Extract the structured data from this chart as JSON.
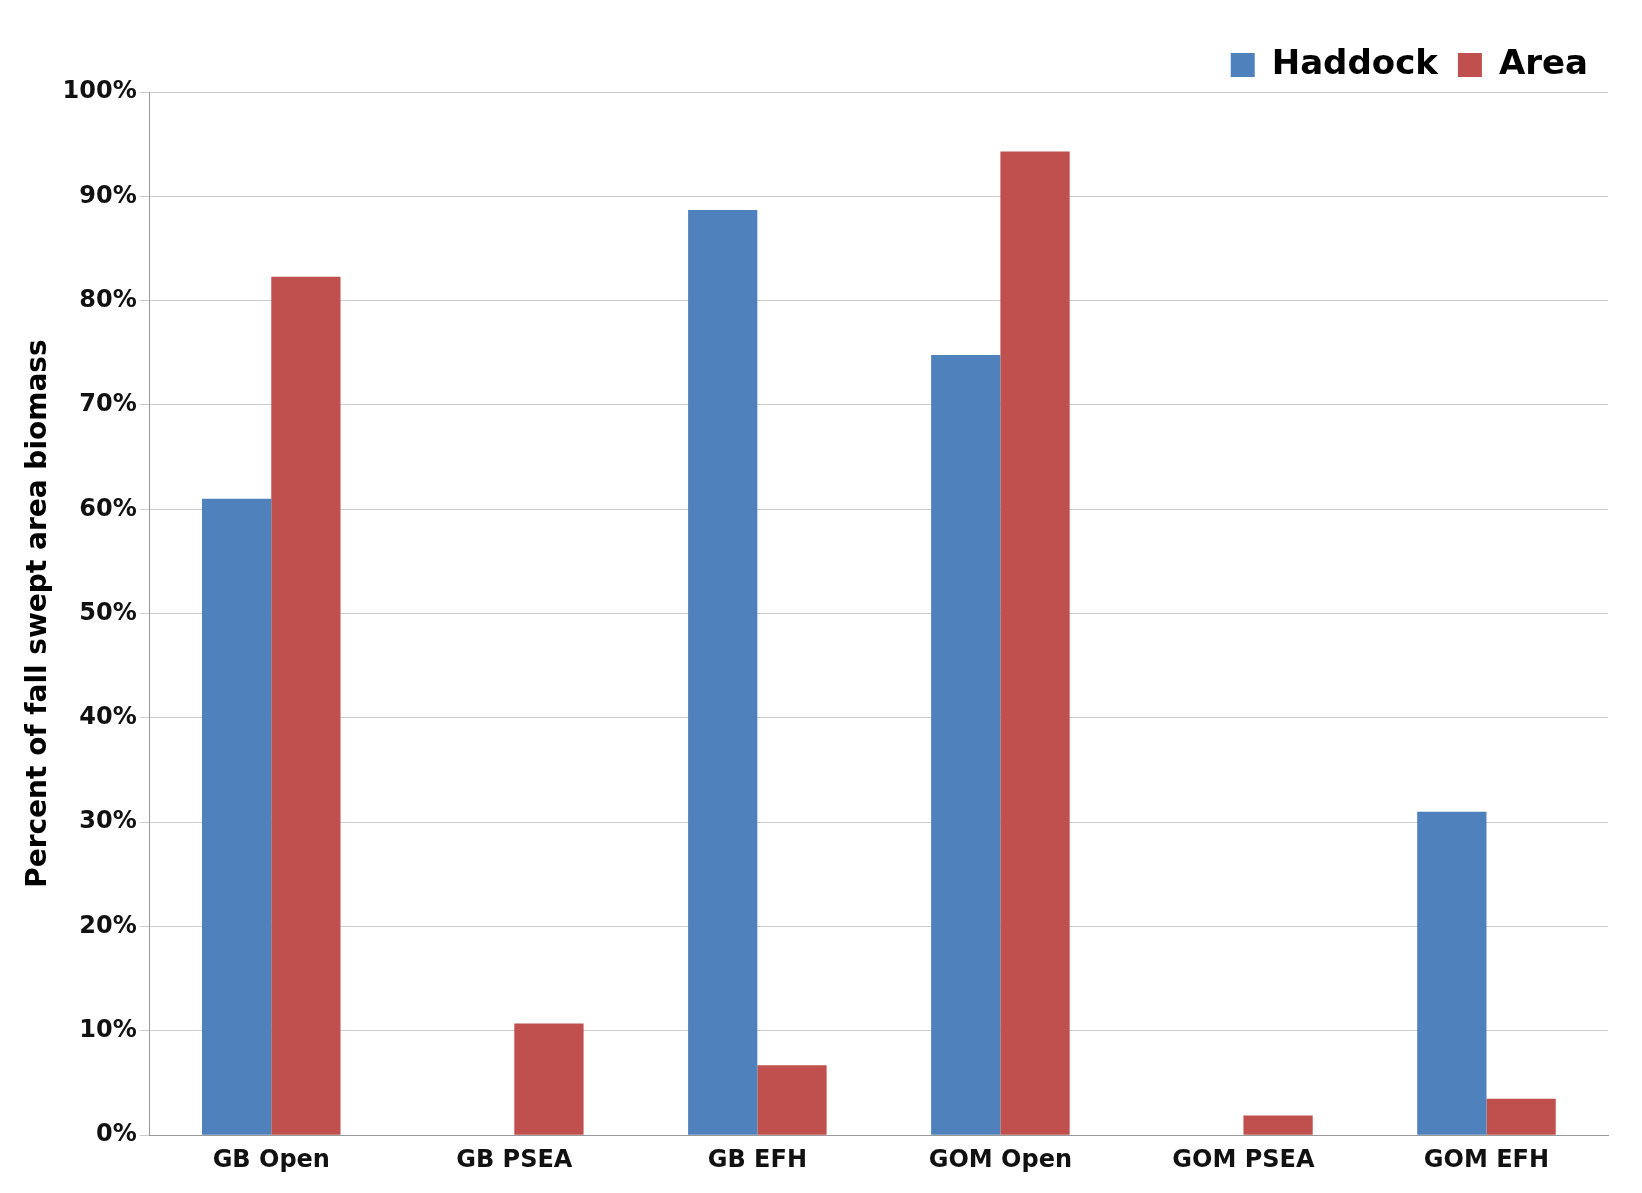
{
  "chart_data": {
    "type": "bar",
    "ylabel": "Percent of fall swept area biomass",
    "categories": [
      "GB Open",
      "GB PSEA",
      "GB EFH",
      "GOM Open",
      "GOM PSEA",
      "GOM EFH"
    ],
    "series": [
      {
        "name": "Haddock",
        "color": "#4f81bd",
        "values": [
          61.0,
          0,
          88.7,
          74.8,
          0,
          31.0
        ]
      },
      {
        "name": "Area",
        "color": "#c0504d",
        "values": [
          82.3,
          10.7,
          6.7,
          94.3,
          1.9,
          3.5
        ]
      }
    ],
    "ylim": [
      0,
      100
    ],
    "yticks": [
      {
        "value": 0,
        "label": "0%"
      },
      {
        "value": 10,
        "label": "10%"
      },
      {
        "value": 20,
        "label": "20%"
      },
      {
        "value": 30,
        "label": "30%"
      },
      {
        "value": 40,
        "label": "40%"
      },
      {
        "value": 50,
        "label": "50%"
      },
      {
        "value": 60,
        "label": "60%"
      },
      {
        "value": 70,
        "label": "70%"
      },
      {
        "value": 80,
        "label": "80%"
      },
      {
        "value": 90,
        "label": "90%"
      },
      {
        "value": 100,
        "label": "100%"
      }
    ],
    "grid": "y",
    "legend": "top right"
  }
}
